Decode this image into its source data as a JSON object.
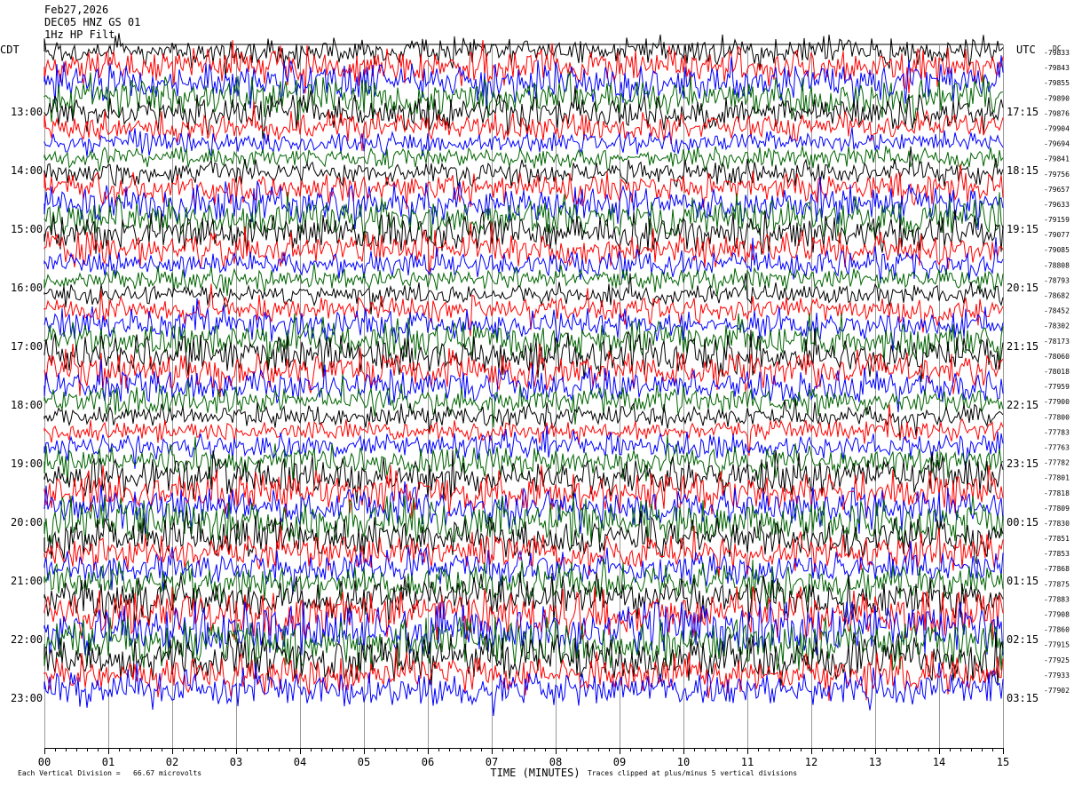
{
  "header": {
    "date": "Feb27,2026",
    "station": "DEC05 HNZ GS 01",
    "filter": "1Hz HP Filt"
  },
  "footer": {
    "scale_note": "Each Vertical Division =   66.67 microvolts",
    "clip_note": "Traces clipped at plus/minus 5 vertical divisions"
  },
  "chart_data": {
    "type": "line",
    "title": "",
    "xlabel": "TIME (MINUTES)",
    "ylabel": "",
    "x_ticks": [
      "00",
      "01",
      "02",
      "03",
      "04",
      "05",
      "06",
      "07",
      "08",
      "09",
      "10",
      "11",
      "12",
      "13",
      "14",
      "15"
    ],
    "xlim": [
      0,
      15
    ],
    "left_axis_label": "CDT",
    "right_axis_label": "UTC",
    "left_times": [
      "13:00",
      "14:00",
      "15:00",
      "16:00",
      "17:00",
      "18:00",
      "19:00",
      "20:00",
      "21:00",
      "22:00",
      "23:00"
    ],
    "right_times": [
      "17:15",
      "18:15",
      "19:15",
      "20:15",
      "21:15",
      "22:15",
      "23:15",
      "00:15",
      "01:15",
      "02:15",
      "03:15"
    ],
    "dc_header": "DC",
    "dc_offsets": [
      "-79833",
      "-79843",
      "-79855",
      "-79890",
      "-79876",
      "-79904",
      "-79694",
      "-79841",
      "-79756",
      "-79657",
      "-79633",
      "-79159",
      "-79077",
      "-79085",
      "-78808",
      "-78793",
      "-78682",
      "-78452",
      "-78302",
      "-78173",
      "-78060",
      "-78018",
      "-77959",
      "-77900",
      "-77800",
      "-77783",
      "-77763",
      "-77782",
      "-77801",
      "-77818",
      "-77809",
      "-77830",
      "-77851",
      "-77853",
      "-77868",
      "-77875",
      "-77883",
      "-77908",
      "-77860",
      "-77915",
      "-77925",
      "-77933",
      "-77902"
    ],
    "trace_colors": [
      "#000000",
      "#ff0000",
      "#0000ff",
      "#006400"
    ],
    "grid": true,
    "clip_divisions": 5
  }
}
